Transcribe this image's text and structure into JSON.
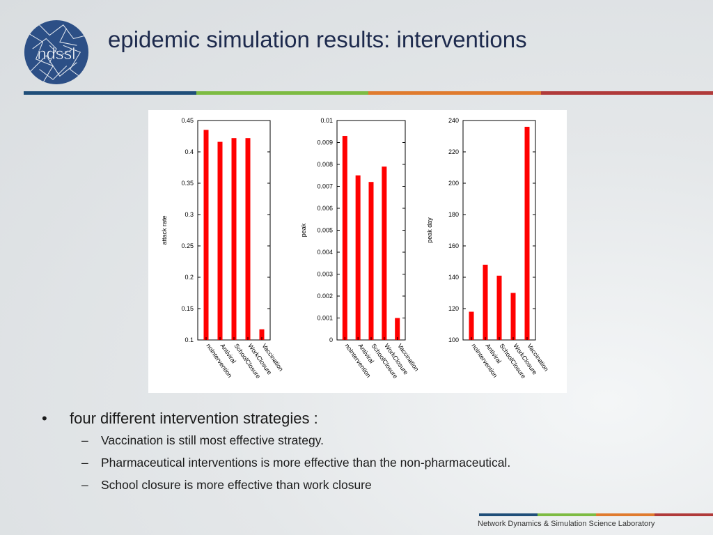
{
  "slide": {
    "title": "epidemic simulation results: interventions",
    "logo_text": "ndssl",
    "colors": {
      "rule": [
        "#1f4e79",
        "#7dbb42",
        "#e07b2e",
        "#b03a3a"
      ],
      "bar": "#ff0000",
      "title": "#1d2a4d"
    }
  },
  "bullets": {
    "main": "four different intervention strategies :",
    "subs": [
      "Vaccination is still most effective strategy.",
      "Pharmaceutical interventions is more effective than the non-pharmaceutical.",
      "School closure is more effective than work closure"
    ]
  },
  "footer": {
    "text": "Network Dynamics & Simulation Science Laboratory"
  },
  "chart_data": [
    {
      "type": "bar",
      "categories": [
        "noIntervention",
        "Antiviral",
        "SchoolClosure",
        "WorkClosure",
        "Vaccination"
      ],
      "values": [
        0.435,
        0.416,
        0.422,
        0.422,
        0.117
      ],
      "ylabel": "attack rate",
      "ylim": [
        0.1,
        0.45
      ],
      "yticks": [
        "0.1",
        "0.15",
        "0.2",
        "0.25",
        "0.3",
        "0.35",
        "0.4",
        "0.45"
      ]
    },
    {
      "type": "bar",
      "categories": [
        "noIntervention",
        "Antiviral",
        "SchoolClosure",
        "WorkClosure",
        "Vaccination"
      ],
      "values": [
        0.0093,
        0.0075,
        0.0072,
        0.0079,
        0.001
      ],
      "ylabel": "peak",
      "ylim": [
        0,
        0.01
      ],
      "yticks": [
        "0",
        "0.001",
        "0.002",
        "0.003",
        "0.004",
        "0.005",
        "0.006",
        "0.007",
        "0.008",
        "0.009",
        "0.01"
      ]
    },
    {
      "type": "bar",
      "categories": [
        "noIntervention",
        "Antiviral",
        "SchoolClosure",
        "WorkClosure",
        "Vaccination"
      ],
      "values": [
        118,
        148,
        141,
        130,
        236
      ],
      "ylabel": "peak day",
      "ylim": [
        100,
        240
      ],
      "yticks": [
        "100",
        "120",
        "140",
        "160",
        "180",
        "200",
        "220",
        "240"
      ]
    }
  ]
}
